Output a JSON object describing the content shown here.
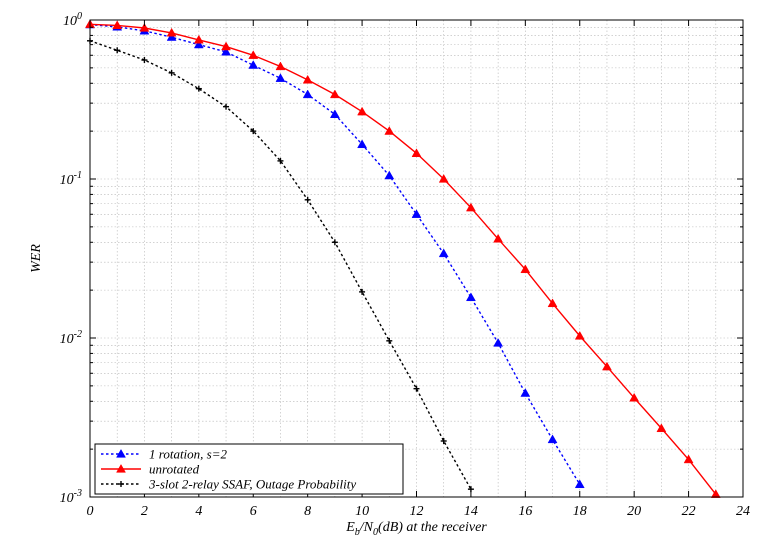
{
  "chart_data": {
    "type": "line",
    "x_axis": {
      "range": [
        0,
        24
      ],
      "ticks": [
        0,
        2,
        4,
        6,
        8,
        10,
        12,
        14,
        16,
        18,
        20,
        22,
        24
      ],
      "label_parts": [
        "E",
        "b",
        "/N",
        "0",
        "(dB) at the receiver"
      ]
    },
    "y_axis": {
      "scale": "log",
      "range": [
        0.001,
        1
      ],
      "label": "WER",
      "ticks": [
        {
          "value": 1,
          "base": "10",
          "exp": "0"
        },
        {
          "value": 0.1,
          "base": "10",
          "exp": "-1"
        },
        {
          "value": 0.01,
          "base": "10",
          "exp": "-2"
        },
        {
          "value": 0.001,
          "base": "10",
          "exp": "-3"
        }
      ]
    },
    "grid": true,
    "legend": "bottom-left",
    "series": [
      {
        "name": "1 rotation, s=2",
        "color": "#0000ff",
        "line": "dotted",
        "marker": "triangle",
        "x": [
          0,
          1,
          2,
          3,
          4,
          5,
          6,
          7,
          8,
          9,
          10,
          11,
          12,
          13,
          14,
          15,
          16,
          17,
          18
        ],
        "y": [
          0.935,
          0.905,
          0.855,
          0.78,
          0.7,
          0.63,
          0.52,
          0.43,
          0.34,
          0.255,
          0.165,
          0.105,
          0.06,
          0.034,
          0.018,
          0.0093,
          0.0045,
          0.0023,
          0.0012
        ]
      },
      {
        "name": "unrotated",
        "color": "#ff0000",
        "line": "solid",
        "marker": "triangle",
        "x": [
          0,
          1,
          2,
          3,
          4,
          5,
          6,
          7,
          8,
          9,
          10,
          11,
          12,
          13,
          14,
          15,
          16,
          17,
          18,
          19,
          20,
          21,
          22,
          23
        ],
        "y": [
          0.94,
          0.925,
          0.89,
          0.83,
          0.75,
          0.68,
          0.6,
          0.51,
          0.42,
          0.34,
          0.265,
          0.2,
          0.145,
          0.1,
          0.066,
          0.042,
          0.027,
          0.0165,
          0.0103,
          0.0066,
          0.0042,
          0.0027,
          0.00172,
          0.00104
        ]
      },
      {
        "name": "3-slot 2-relay SSAF, Outage Probability",
        "color": "#000000",
        "line": "dotted",
        "marker": "plus",
        "x": [
          0,
          1,
          2,
          3,
          4,
          5,
          6,
          7,
          8,
          9,
          10,
          11,
          12,
          13,
          14
        ],
        "y": [
          0.74,
          0.645,
          0.56,
          0.465,
          0.37,
          0.285,
          0.2,
          0.13,
          0.074,
          0.04,
          0.0195,
          0.0096,
          0.0048,
          0.00225,
          0.00112
        ]
      }
    ]
  }
}
